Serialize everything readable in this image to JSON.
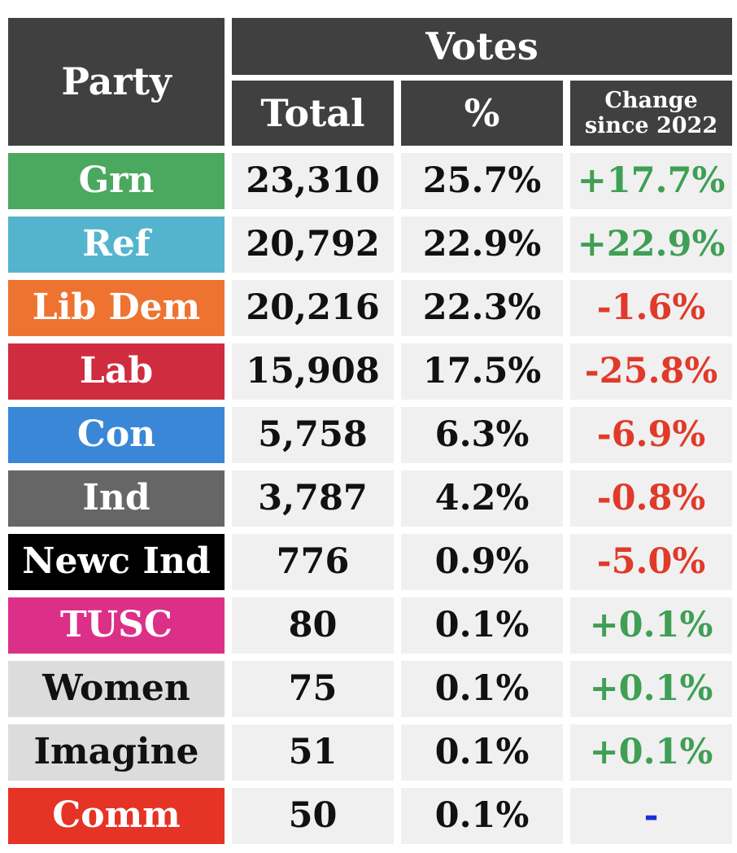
{
  "table": {
    "header": {
      "party": "Party",
      "votes": "Votes",
      "total": "Total",
      "percent": "%",
      "change": "Change since 2022"
    },
    "rows": [
      {
        "party": "Grn",
        "total": "23,310",
        "percent": "25.7%",
        "change": "+17.7%",
        "party_color": "#4aa85f",
        "party_text_color": "#ffffff",
        "change_color": "#3f9f55"
      },
      {
        "party": "Ref",
        "total": "20,792",
        "percent": "22.9%",
        "change": "+22.9%",
        "party_color": "#54b4ce",
        "party_text_color": "#ffffff",
        "change_color": "#3f9f55"
      },
      {
        "party": "Lib Dem",
        "total": "20,216",
        "percent": "22.3%",
        "change": "-1.6%",
        "party_color": "#ee7331",
        "party_text_color": "#ffffff",
        "change_color": "#e03a2a"
      },
      {
        "party": "Lab",
        "total": "15,908",
        "percent": "17.5%",
        "change": "-25.8%",
        "party_color": "#cf2c3f",
        "party_text_color": "#ffffff",
        "change_color": "#e03a2a"
      },
      {
        "party": "Con",
        "total": "5,758",
        "percent": "6.3%",
        "change": "-6.9%",
        "party_color": "#3a87d7",
        "party_text_color": "#ffffff",
        "change_color": "#e03a2a"
      },
      {
        "party": "Ind",
        "total": "3,787",
        "percent": "4.2%",
        "change": "-0.8%",
        "party_color": "#666666",
        "party_text_color": "#ffffff",
        "change_color": "#e03a2a"
      },
      {
        "party": "Newc Ind",
        "total": "776",
        "percent": "0.9%",
        "change": "-5.0%",
        "party_color": "#000000",
        "party_text_color": "#ffffff",
        "change_color": "#e03a2a"
      },
      {
        "party": "TUSC",
        "total": "80",
        "percent": "0.1%",
        "change": "+0.1%",
        "party_color": "#dc3088",
        "party_text_color": "#ffffff",
        "change_color": "#3f9f55"
      },
      {
        "party": "Women",
        "total": "75",
        "percent": "0.1%",
        "change": "+0.1%",
        "party_color": "#dcdcdc",
        "party_text_color": "#111111",
        "change_color": "#3f9f55"
      },
      {
        "party": "Imagine",
        "total": "51",
        "percent": "0.1%",
        "change": "+0.1%",
        "party_color": "#dcdcdc",
        "party_text_color": "#111111",
        "change_color": "#3f9f55"
      },
      {
        "party": "Comm",
        "total": "50",
        "percent": "0.1%",
        "change": "-",
        "party_color": "#e53326",
        "party_text_color": "#ffffff",
        "change_color": "#1a2fd6"
      }
    ]
  },
  "chart_data": {
    "type": "table",
    "columns": [
      "Party",
      "Total",
      "%",
      "Change since 2022"
    ],
    "column_groups": [
      {
        "label": "Votes",
        "columns": [
          "Total",
          "%",
          "Change since 2022"
        ]
      }
    ],
    "rows": [
      [
        "Grn",
        23310,
        25.7,
        17.7
      ],
      [
        "Ref",
        20792,
        22.9,
        22.9
      ],
      [
        "Lib Dem",
        20216,
        22.3,
        -1.6
      ],
      [
        "Lab",
        15908,
        17.5,
        -25.8
      ],
      [
        "Con",
        5758,
        6.3,
        -6.9
      ],
      [
        "Ind",
        3787,
        4.2,
        -0.8
      ],
      [
        "Newc Ind",
        776,
        0.9,
        -5.0
      ],
      [
        "TUSC",
        80,
        0.1,
        0.1
      ],
      [
        "Women",
        75,
        0.1,
        0.1
      ],
      [
        "Imagine",
        51,
        0.1,
        0.1
      ],
      [
        "Comm",
        50,
        0.1,
        null
      ]
    ]
  }
}
